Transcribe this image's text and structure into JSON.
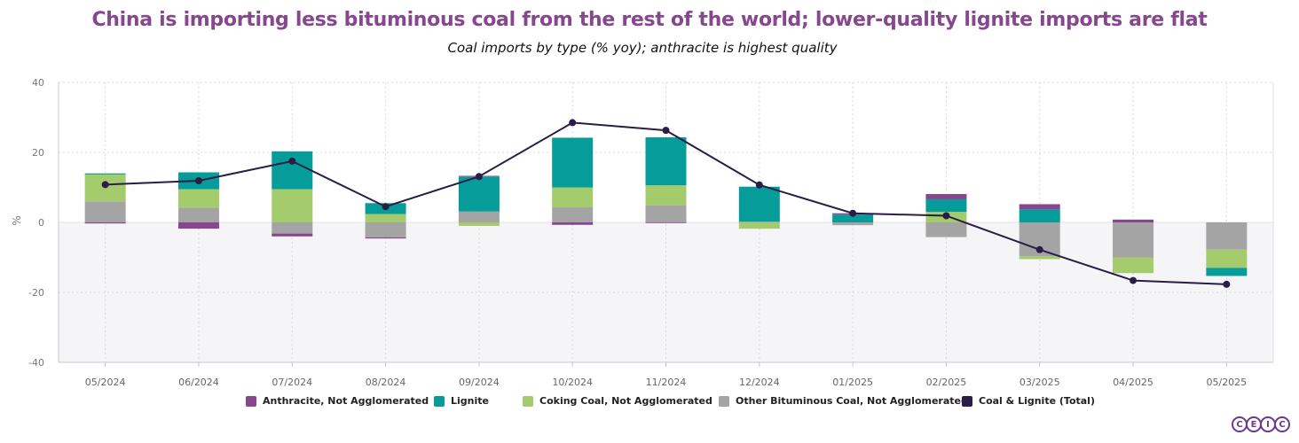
{
  "title": "China is importing less bituminous coal from the rest of the world; lower-quality lignite imports are flat",
  "subtitle": "Coal imports by type (% yoy); anthracite is highest quality",
  "colors": {
    "title": "#87478f",
    "anthracite": "#87478f",
    "lignite": "#069c99",
    "coking": "#a4cc6c",
    "bituminous": "#a5a4a5",
    "total": "#2a1d46",
    "negative_band": "#f5f5f8"
  },
  "legend": {
    "anthracite": "Anthracite, Not Agglomerated",
    "lignite": "Lignite",
    "coking": "Coking Coal, Not Agglomerated",
    "bituminous": "Other Bituminous Coal, Not Agglomerated",
    "total": "Coal & Lignite (Total)"
  },
  "logo": [
    "C",
    "E",
    "I",
    "C"
  ],
  "chart_data": {
    "type": "bar",
    "stacked": true,
    "ylabel": "%",
    "ylim": [
      -40,
      40
    ],
    "yticks": [
      40,
      20,
      0,
      -20,
      -40
    ],
    "grid": true,
    "legend_position": "bottom",
    "categories": [
      "05/2024",
      "06/2024",
      "07/2024",
      "08/2024",
      "09/2024",
      "10/2024",
      "11/2024",
      "12/2024",
      "01/2025",
      "02/2025",
      "03/2025",
      "04/2025",
      "05/2025"
    ],
    "series": [
      {
        "key": "anthracite",
        "name": "Anthracite, Not Agglomerated",
        "type": "bar",
        "values": [
          -0.3,
          -1.8,
          -0.8,
          -0.3,
          0.2,
          -0.7,
          -0.2,
          0.0,
          0.4,
          1.5,
          1.5,
          0.8,
          0.0
        ]
      },
      {
        "key": "lignite",
        "name": "Lignite",
        "type": "bar",
        "values": [
          0.3,
          4.8,
          10.8,
          3.1,
          10.0,
          14.2,
          13.7,
          10.0,
          2.2,
          3.6,
          3.7,
          0.0,
          -2.3
        ]
      },
      {
        "key": "coking",
        "name": "Coking Coal, Not Agglomerated",
        "type": "bar",
        "values": [
          7.7,
          5.3,
          9.5,
          2.4,
          -1.0,
          5.7,
          5.7,
          -1.8,
          0.0,
          3.0,
          -0.8,
          -4.5,
          -5.2
        ]
      },
      {
        "key": "bituminous",
        "name": "Other Bituminous Coal, Not Agglomerated",
        "type": "bar",
        "values": [
          6.0,
          4.2,
          -3.2,
          -4.3,
          3.1,
          4.3,
          4.9,
          0.2,
          -0.8,
          -4.2,
          -9.7,
          -10.0,
          -7.8
        ]
      },
      {
        "key": "total",
        "name": "Coal & Lignite (Total)",
        "type": "line",
        "values": [
          10.8,
          11.9,
          17.5,
          4.5,
          13.1,
          28.5,
          26.3,
          10.7,
          2.6,
          1.9,
          -7.8,
          -16.6,
          -17.7
        ]
      }
    ]
  }
}
